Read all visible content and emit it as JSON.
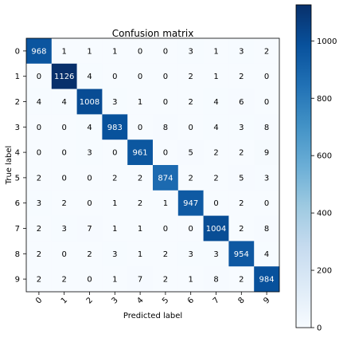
{
  "chart_data": {
    "type": "heatmap",
    "title": "Confusion matrix",
    "xlabel": "Predicted label",
    "ylabel": "True label",
    "x_ticks": [
      "0",
      "1",
      "2",
      "3",
      "4",
      "5",
      "6",
      "7",
      "8",
      "9"
    ],
    "y_ticks": [
      "0",
      "1",
      "2",
      "3",
      "4",
      "5",
      "6",
      "7",
      "8",
      "9"
    ],
    "matrix": [
      [
        968,
        1,
        1,
        1,
        0,
        0,
        3,
        1,
        3,
        2
      ],
      [
        0,
        1126,
        4,
        0,
        0,
        0,
        2,
        1,
        2,
        0
      ],
      [
        4,
        4,
        1008,
        3,
        1,
        0,
        2,
        4,
        6,
        0
      ],
      [
        0,
        0,
        4,
        983,
        0,
        8,
        0,
        4,
        3,
        8
      ],
      [
        0,
        0,
        3,
        0,
        961,
        0,
        5,
        2,
        2,
        9
      ],
      [
        2,
        0,
        0,
        2,
        2,
        874,
        2,
        2,
        5,
        3
      ],
      [
        3,
        2,
        0,
        1,
        2,
        1,
        947,
        0,
        2,
        0
      ],
      [
        2,
        3,
        7,
        1,
        1,
        0,
        0,
        1004,
        2,
        8
      ],
      [
        2,
        0,
        2,
        3,
        1,
        2,
        3,
        3,
        954,
        4
      ],
      [
        2,
        2,
        0,
        1,
        7,
        2,
        1,
        8,
        2,
        984
      ]
    ],
    "colormap": "Blues",
    "vmin": 0,
    "vmax": 1126,
    "colorbar_ticks": [
      0,
      200,
      400,
      600,
      800,
      1000
    ],
    "grid": false
  }
}
